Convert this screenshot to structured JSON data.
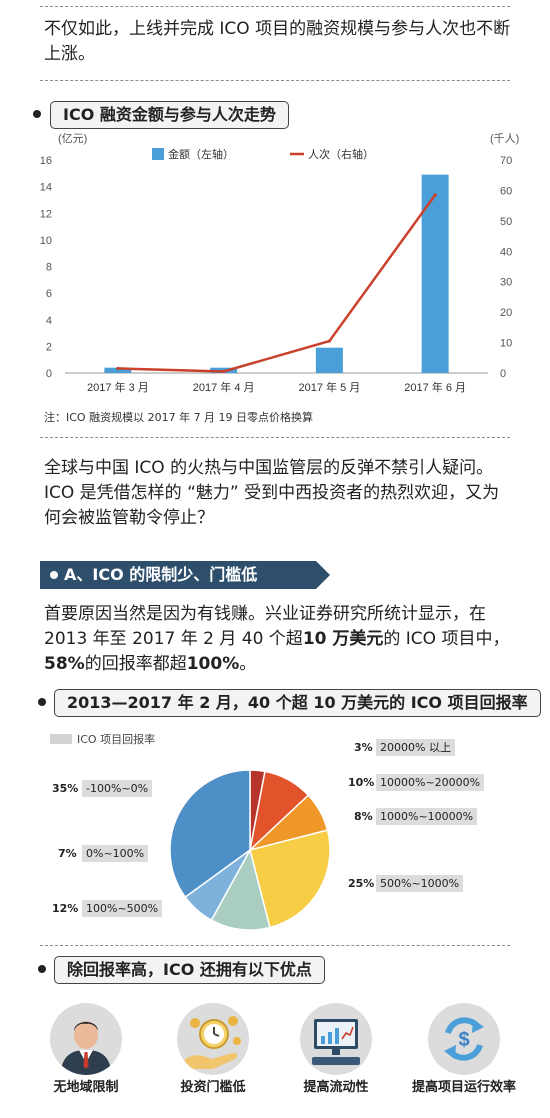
{
  "intro": {
    "text": "不仅如此，上线并完成 ICO 项目的融资规模与参与人次也不断上涨。"
  },
  "chart1": {
    "header": "ICO 融资金额与参与人次走势",
    "left_unit": "(亿元)",
    "right_unit": "(千人)",
    "note": "注：ICO 融资规模以 2017 年 7 月 19 日零点价格换算",
    "colors": {
      "bar": "#4a9fd8",
      "line": "#c9402b"
    }
  },
  "chart_data": [
    {
      "type": "bar+line",
      "categories": [
        "2017 年 3 月",
        "2017 年 4 月",
        "2017 年 5 月",
        "2017 年 6 月"
      ],
      "series": [
        {
          "name": "金额（左轴）",
          "type": "bar",
          "axis": "left",
          "values": [
            0.4,
            0.4,
            1.9,
            14.9
          ]
        },
        {
          "name": "人次（右轴）",
          "type": "line",
          "axis": "right",
          "values": [
            1.5,
            0.5,
            10.5,
            58.5
          ]
        }
      ],
      "left_axis": {
        "ylim": [
          0,
          16
        ],
        "ticks": [
          0,
          2,
          4,
          6,
          8,
          10,
          12,
          14,
          16
        ],
        "label": "(亿元)"
      },
      "right_axis": {
        "ylim": [
          0,
          70
        ],
        "ticks": [
          0,
          10,
          20,
          30,
          40,
          50,
          60,
          70
        ],
        "label": "(千人)"
      },
      "legend_position": "top",
      "grid": false
    },
    {
      "type": "pie",
      "title": "2013—2017 年 2 月，40 个超 10 万美元的 ICO 项目回报率",
      "legend": "ICO 项目回报率",
      "slices": [
        {
          "label": "20000% 以上",
          "pct_text": "3%",
          "value": 3,
          "color": "#b5342b"
        },
        {
          "label": "10000%~20000%",
          "pct_text": "10%",
          "value": 10,
          "color": "#e2532c"
        },
        {
          "label": "1000%~10000%",
          "pct_text": "8%",
          "value": 8,
          "color": "#f0972a"
        },
        {
          "label": "500%~1000%",
          "pct_text": "25%",
          "value": 25,
          "color": "#f6cd44"
        },
        {
          "label": "100%~500%",
          "pct_text": "12%",
          "value": 12,
          "color": "#a9cdc0"
        },
        {
          "label": "0%~100%",
          "pct_text": "7%",
          "value": 7,
          "color": "#7eb2dc"
        },
        {
          "label": "-100%~0%",
          "pct_text": "35%",
          "value": 35,
          "color": "#4d8fc7"
        }
      ]
    }
  ],
  "question": {
    "text": "全球与中国 ICO 的火热与中国监管层的反弹不禁引人疑问。ICO 是凭借怎样的 “魅力” 受到中西投资者的热烈欢迎，又为何会被监管勒令停止？"
  },
  "sectionA": {
    "title": "A、ICO 的限制少、门槛低",
    "p_before": "首要原因当然是因为有钱赚。兴业证券研究所统计显示，在 2013 年至 2017 年 2 月 40 个超",
    "p_bold1": "10 万美元",
    "p_mid": "的 ICO 项目中，",
    "p_bold2": "58%",
    "p_mid2": "的回报率都超",
    "p_bold3": "100%",
    "p_end": "。"
  },
  "pie_header": "2013—2017 年 2 月，40 个超 10 万美元的 ICO 项目回报率",
  "advantages": {
    "header": "除回报率高，ICO 还拥有以下优点",
    "items": [
      {
        "label": "无地域限制",
        "icon": "businessman-icon"
      },
      {
        "label": "投资门槛低",
        "icon": "hand-clock-coins-icon"
      },
      {
        "label": "提高流动性",
        "icon": "computer-chart-icon"
      },
      {
        "label": "提高项目运行效率",
        "icon": "cycle-dollar-icon"
      }
    ]
  }
}
